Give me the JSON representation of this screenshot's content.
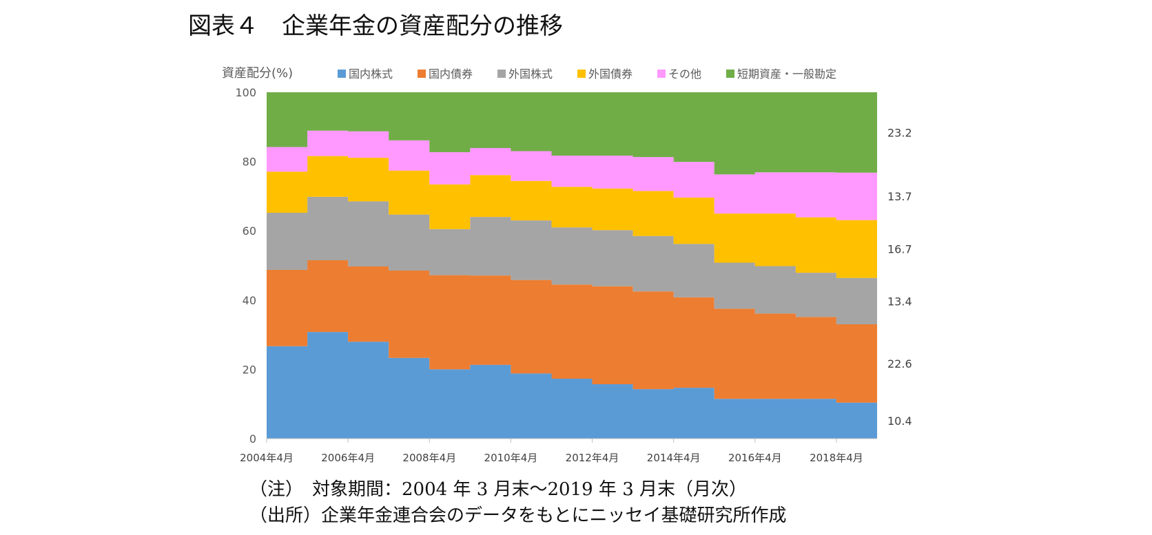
{
  "title": "図表４　企業年金の資産配分の推移",
  "notes": {
    "line1": "（注）　対象期間：2004 年 3 月末～2019 年 3 月末（月次）",
    "line2": "（出所）企業年金連合会のデータをもとにニッセイ基礎研究所作成"
  },
  "colors": {
    "domestic_stock": "#5b9bd5",
    "domestic_bond": "#ed7d31",
    "foreign_stock": "#a5a5a5",
    "foreign_bond": "#ffc000",
    "other": "#ff99ff",
    "short_term": "#70ad47"
  },
  "chart_data": {
    "type": "area",
    "stacked": true,
    "step": true,
    "ylabel": "資産配分(%)",
    "ylim": [
      0,
      100
    ],
    "yticks": [
      "0",
      "20",
      "40",
      "60",
      "80",
      "100"
    ],
    "xtick_labels": [
      "2004年4月",
      "2006年4月",
      "2008年4月",
      "2010年4月",
      "2012年4月",
      "2014年4月",
      "2016年4月",
      "2018年4月"
    ],
    "periods": [
      "2004年3月末",
      "2005年3月末",
      "2006年3月末",
      "2007年3月末",
      "2008年3月末",
      "2009年3月末",
      "2010年3月末",
      "2011年3月末",
      "2012年3月末",
      "2013年3月末",
      "2014年3月末",
      "2015年3月末",
      "2016年3月末",
      "2017年3月末",
      "2018年3月末"
    ],
    "legend_position": "top",
    "series": [
      {
        "key": "domestic_stock",
        "name": "国内株式",
        "values": [
          26.7,
          30.8,
          28.0,
          23.3,
          20.0,
          21.3,
          18.8,
          17.3,
          15.7,
          14.3,
          14.7,
          11.5,
          11.5,
          11.5,
          10.4
        ]
      },
      {
        "key": "domestic_bond",
        "name": "国内債券",
        "values": [
          22.0,
          20.7,
          21.7,
          25.2,
          27.2,
          25.8,
          27.0,
          27.2,
          28.3,
          28.2,
          26.1,
          26.0,
          24.6,
          23.6,
          22.6
        ]
      },
      {
        "key": "foreign_stock",
        "name": "外国株式",
        "values": [
          16.5,
          18.3,
          18.8,
          16.2,
          13.3,
          16.9,
          17.2,
          16.5,
          16.2,
          16.0,
          15.4,
          13.3,
          13.7,
          12.8,
          13.4
        ]
      },
      {
        "key": "foreign_bond",
        "name": "外国債券",
        "values": [
          11.9,
          11.8,
          12.6,
          12.7,
          12.9,
          12.1,
          11.4,
          11.7,
          12.0,
          13.0,
          13.4,
          14.2,
          15.2,
          16.0,
          16.7
        ]
      },
      {
        "key": "other",
        "name": "その他",
        "values": [
          7.1,
          7.3,
          7.6,
          8.7,
          9.3,
          7.8,
          8.6,
          9.0,
          9.5,
          9.8,
          10.3,
          11.3,
          11.9,
          13.0,
          13.7
        ]
      },
      {
        "key": "short_term",
        "name": "短期資産・一般勘定",
        "values": [
          15.8,
          11.1,
          11.3,
          13.9,
          17.3,
          16.1,
          17.0,
          18.3,
          18.3,
          18.7,
          20.1,
          23.7,
          23.1,
          23.1,
          23.2
        ]
      }
    ],
    "end_labels": [
      "10.4",
      "22.6",
      "13.4",
      "16.7",
      "13.7",
      "23.2"
    ]
  }
}
